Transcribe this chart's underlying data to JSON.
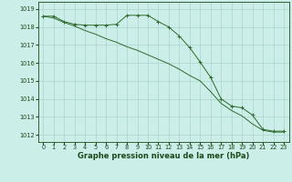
{
  "line1_x": [
    0,
    1,
    2,
    3,
    4,
    5,
    6,
    7,
    8,
    9,
    10,
    11,
    12,
    13,
    14,
    15,
    16,
    17,
    18,
    19,
    20,
    21,
    22,
    23
  ],
  "line1_y": [
    1018.6,
    1018.6,
    1018.3,
    1018.15,
    1018.1,
    1018.1,
    1018.1,
    1018.15,
    1018.65,
    1018.65,
    1018.65,
    1018.3,
    1018.0,
    1017.5,
    1016.85,
    1016.05,
    1015.2,
    1014.0,
    1013.6,
    1013.5,
    1013.1,
    1012.3,
    1012.2,
    1012.2
  ],
  "line2_x": [
    0,
    1,
    2,
    3,
    4,
    5,
    6,
    7,
    8,
    9,
    10,
    11,
    12,
    13,
    14,
    15,
    16,
    17,
    18,
    19,
    20,
    21,
    22,
    23
  ],
  "line2_y": [
    1018.6,
    1018.5,
    1018.25,
    1018.05,
    1017.8,
    1017.6,
    1017.35,
    1017.15,
    1016.9,
    1016.7,
    1016.45,
    1016.2,
    1015.95,
    1015.65,
    1015.3,
    1015.0,
    1014.4,
    1013.75,
    1013.35,
    1013.05,
    1012.6,
    1012.25,
    1012.15,
    1012.15
  ],
  "line_color": "#2d6a2d",
  "marker": "+",
  "background_color": "#cceee8",
  "grid_color": "#aad4ce",
  "xlabel": "Graphe pression niveau de la mer (hPa)",
  "ylim": [
    1011.6,
    1019.4
  ],
  "xlim": [
    -0.5,
    23.5
  ],
  "yticks": [
    1012,
    1013,
    1014,
    1015,
    1016,
    1017,
    1018,
    1019
  ],
  "xticks": [
    0,
    1,
    2,
    3,
    4,
    5,
    6,
    7,
    8,
    9,
    10,
    11,
    12,
    13,
    14,
    15,
    16,
    17,
    18,
    19,
    20,
    21,
    22,
    23
  ],
  "tick_fontsize": 4.8,
  "label_fontsize": 6.0,
  "label_color": "#1a4a1a"
}
